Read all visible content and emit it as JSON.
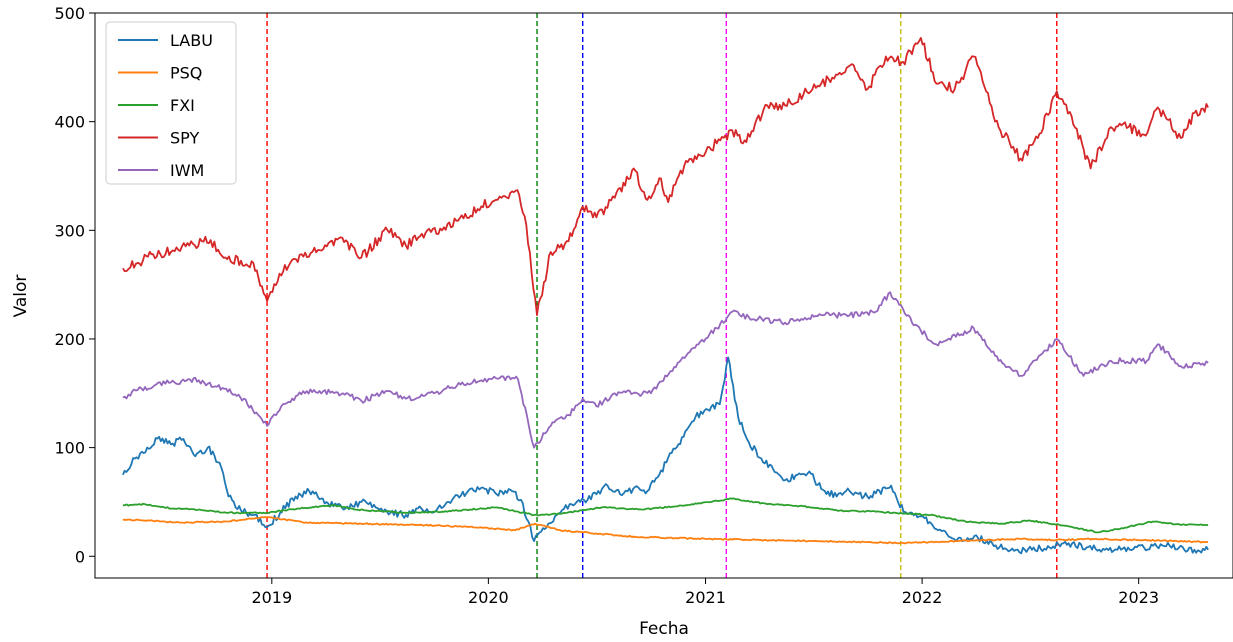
{
  "chart_data": {
    "type": "line",
    "xlabel": "Fecha",
    "ylabel": "Valor",
    "x_range": [
      "2018-03-09",
      "2023-06-09"
    ],
    "ylim": [
      -20,
      500
    ],
    "x_ticks": [
      "2019-01-01",
      "2020-01-01",
      "2021-01-01",
      "2022-01-01",
      "2023-01-01"
    ],
    "x_tick_labels": [
      "2019",
      "2020",
      "2021",
      "2022",
      "2023"
    ],
    "y_ticks": [
      0,
      100,
      200,
      300,
      400,
      500
    ],
    "y_tick_labels": [
      "0",
      "100",
      "200",
      "300",
      "400",
      "500"
    ],
    "grid": false,
    "legend_position": "upper-left",
    "series": [
      {
        "name": "LABU",
        "color": "#1f77b4",
        "points": [
          [
            "2018-04-25",
            75
          ],
          [
            "2018-05-15",
            90
          ],
          [
            "2018-06-05",
            100
          ],
          [
            "2018-06-25",
            110
          ],
          [
            "2018-07-15",
            103
          ],
          [
            "2018-08-05",
            108
          ],
          [
            "2018-08-25",
            92
          ],
          [
            "2018-09-15",
            100
          ],
          [
            "2018-10-05",
            86
          ],
          [
            "2018-10-20",
            55
          ],
          [
            "2018-11-10",
            42
          ],
          [
            "2018-12-01",
            38
          ],
          [
            "2018-12-24",
            27
          ],
          [
            "2019-01-15",
            40
          ],
          [
            "2019-02-10",
            55
          ],
          [
            "2019-03-05",
            60
          ],
          [
            "2019-03-25",
            53
          ],
          [
            "2019-04-15",
            46
          ],
          [
            "2019-05-05",
            44
          ],
          [
            "2019-06-01",
            50
          ],
          [
            "2019-06-25",
            45
          ],
          [
            "2019-07-20",
            40
          ],
          [
            "2019-08-15",
            38
          ],
          [
            "2019-09-10",
            44
          ],
          [
            "2019-10-05",
            42
          ],
          [
            "2019-11-01",
            52
          ],
          [
            "2019-11-25",
            58
          ],
          [
            "2019-12-20",
            63
          ],
          [
            "2020-01-15",
            57
          ],
          [
            "2020-02-10",
            60
          ],
          [
            "2020-02-25",
            52
          ],
          [
            "2020-03-18",
            14
          ],
          [
            "2020-04-05",
            25
          ],
          [
            "2020-05-01",
            40
          ],
          [
            "2020-05-20",
            48
          ],
          [
            "2020-06-10",
            52
          ],
          [
            "2020-07-01",
            57
          ],
          [
            "2020-07-20",
            65
          ],
          [
            "2020-08-10",
            57
          ],
          [
            "2020-09-01",
            62
          ],
          [
            "2020-09-25",
            60
          ],
          [
            "2020-10-15",
            75
          ],
          [
            "2020-11-05",
            95
          ],
          [
            "2020-11-25",
            110
          ],
          [
            "2020-12-15",
            128
          ],
          [
            "2021-01-05",
            135
          ],
          [
            "2021-01-25",
            140
          ],
          [
            "2021-02-08",
            183
          ],
          [
            "2021-02-25",
            128
          ],
          [
            "2021-03-15",
            105
          ],
          [
            "2021-04-05",
            90
          ],
          [
            "2021-04-25",
            80
          ],
          [
            "2021-05-15",
            70
          ],
          [
            "2021-06-05",
            75
          ],
          [
            "2021-06-25",
            78
          ],
          [
            "2021-07-15",
            62
          ],
          [
            "2021-08-10",
            55
          ],
          [
            "2021-09-01",
            60
          ],
          [
            "2021-09-25",
            55
          ],
          [
            "2021-10-15",
            58
          ],
          [
            "2021-11-10",
            65
          ],
          [
            "2021-11-25",
            45
          ],
          [
            "2021-12-15",
            40
          ],
          [
            "2022-01-05",
            35
          ],
          [
            "2022-01-25",
            25
          ],
          [
            "2022-02-15",
            18
          ],
          [
            "2022-03-10",
            14
          ],
          [
            "2022-04-05",
            17
          ],
          [
            "2022-05-05",
            10
          ],
          [
            "2022-06-05",
            5
          ],
          [
            "2022-07-05",
            6
          ],
          [
            "2022-08-10",
            9
          ],
          [
            "2022-09-05",
            12
          ],
          [
            "2022-10-05",
            8
          ],
          [
            "2022-11-05",
            6
          ],
          [
            "2022-12-05",
            7
          ],
          [
            "2023-01-10",
            8
          ],
          [
            "2023-02-10",
            10
          ],
          [
            "2023-03-10",
            8
          ],
          [
            "2023-04-05",
            6
          ],
          [
            "2023-04-28",
            6
          ]
        ]
      },
      {
        "name": "PSQ",
        "color": "#ff7f0e",
        "points": [
          [
            "2018-04-25",
            34
          ],
          [
            "2018-08-01",
            31
          ],
          [
            "2018-10-15",
            32
          ],
          [
            "2018-12-24",
            36
          ],
          [
            "2019-03-01",
            31
          ],
          [
            "2019-06-01",
            30
          ],
          [
            "2019-09-01",
            29
          ],
          [
            "2019-12-01",
            27
          ],
          [
            "2020-02-15",
            24
          ],
          [
            "2020-03-20",
            30
          ],
          [
            "2020-05-01",
            24
          ],
          [
            "2020-07-01",
            21
          ],
          [
            "2020-09-01",
            18
          ],
          [
            "2020-11-01",
            17
          ],
          [
            "2021-01-01",
            16
          ],
          [
            "2021-04-01",
            15
          ],
          [
            "2021-07-01",
            14
          ],
          [
            "2021-10-01",
            13
          ],
          [
            "2021-12-01",
            12
          ],
          [
            "2022-03-01",
            14
          ],
          [
            "2022-06-15",
            16
          ],
          [
            "2022-08-15",
            15
          ],
          [
            "2022-10-15",
            16
          ],
          [
            "2023-01-01",
            15
          ],
          [
            "2023-03-01",
            14
          ],
          [
            "2023-04-28",
            13
          ]
        ]
      },
      {
        "name": "FXI",
        "color": "#2ca02c",
        "points": [
          [
            "2018-04-25",
            47
          ],
          [
            "2018-06-01",
            48
          ],
          [
            "2018-07-15",
            44
          ],
          [
            "2018-09-01",
            43
          ],
          [
            "2018-10-20",
            40
          ],
          [
            "2018-12-24",
            40
          ],
          [
            "2019-02-15",
            44
          ],
          [
            "2019-04-15",
            47
          ],
          [
            "2019-05-20",
            43
          ],
          [
            "2019-08-15",
            40
          ],
          [
            "2019-10-15",
            41
          ],
          [
            "2020-01-15",
            45
          ],
          [
            "2020-03-18",
            38
          ],
          [
            "2020-05-01",
            39
          ],
          [
            "2020-07-10",
            45
          ],
          [
            "2020-09-15",
            43
          ],
          [
            "2020-11-15",
            46
          ],
          [
            "2021-02-15",
            53
          ],
          [
            "2021-04-15",
            48
          ],
          [
            "2021-06-15",
            46
          ],
          [
            "2021-08-15",
            42
          ],
          [
            "2021-10-15",
            41
          ],
          [
            "2022-01-15",
            38
          ],
          [
            "2022-03-15",
            32
          ],
          [
            "2022-05-15",
            30
          ],
          [
            "2022-07-01",
            33
          ],
          [
            "2022-09-01",
            28
          ],
          [
            "2022-10-25",
            22
          ],
          [
            "2022-12-15",
            27
          ],
          [
            "2023-01-25",
            32
          ],
          [
            "2023-03-15",
            29
          ],
          [
            "2023-04-28",
            29
          ]
        ]
      },
      {
        "name": "SPY",
        "color": "#d62728",
        "points": [
          [
            "2018-04-25",
            265
          ],
          [
            "2018-05-20",
            270
          ],
          [
            "2018-06-15",
            278
          ],
          [
            "2018-07-15",
            280
          ],
          [
            "2018-08-15",
            286
          ],
          [
            "2018-09-20",
            291
          ],
          [
            "2018-10-15",
            275
          ],
          [
            "2018-11-10",
            272
          ],
          [
            "2018-12-01",
            270
          ],
          [
            "2018-12-24",
            235
          ],
          [
            "2019-01-20",
            262
          ],
          [
            "2019-02-20",
            278
          ],
          [
            "2019-03-20",
            282
          ],
          [
            "2019-04-30",
            293
          ],
          [
            "2019-06-01",
            275
          ],
          [
            "2019-07-15",
            300
          ],
          [
            "2019-08-15",
            286
          ],
          [
            "2019-09-20",
            300
          ],
          [
            "2019-10-15",
            300
          ],
          [
            "2019-11-20",
            311
          ],
          [
            "2019-12-20",
            322
          ],
          [
            "2020-01-20",
            331
          ],
          [
            "2020-02-19",
            337
          ],
          [
            "2020-03-05",
            305
          ],
          [
            "2020-03-23",
            222
          ],
          [
            "2020-04-15",
            280
          ],
          [
            "2020-05-15",
            290
          ],
          [
            "2020-06-08",
            322
          ],
          [
            "2020-07-01",
            312
          ],
          [
            "2020-08-01",
            330
          ],
          [
            "2020-09-02",
            357
          ],
          [
            "2020-09-25",
            328
          ],
          [
            "2020-10-15",
            348
          ],
          [
            "2020-10-30",
            326
          ],
          [
            "2020-11-20",
            355
          ],
          [
            "2020-12-20",
            370
          ],
          [
            "2021-01-20",
            380
          ],
          [
            "2021-02-15",
            392
          ],
          [
            "2021-03-05",
            380
          ],
          [
            "2021-04-15",
            415
          ],
          [
            "2021-05-15",
            415
          ],
          [
            "2021-06-15",
            425
          ],
          [
            "2021-07-15",
            435
          ],
          [
            "2021-08-15",
            445
          ],
          [
            "2021-09-02",
            452
          ],
          [
            "2021-10-01",
            430
          ],
          [
            "2021-11-01",
            460
          ],
          [
            "2021-11-30",
            455
          ],
          [
            "2021-12-30",
            477
          ],
          [
            "2022-01-25",
            435
          ],
          [
            "2022-02-25",
            430
          ],
          [
            "2022-03-29",
            460
          ],
          [
            "2022-05-10",
            395
          ],
          [
            "2022-06-16",
            366
          ],
          [
            "2022-07-15",
            385
          ],
          [
            "2022-08-16",
            428
          ],
          [
            "2022-09-10",
            405
          ],
          [
            "2022-10-12",
            357
          ],
          [
            "2022-11-15",
            395
          ],
          [
            "2022-12-15",
            395
          ],
          [
            "2023-01-10",
            388
          ],
          [
            "2023-02-02",
            413
          ],
          [
            "2023-03-13",
            385
          ],
          [
            "2023-04-05",
            408
          ],
          [
            "2023-04-28",
            413
          ]
        ]
      },
      {
        "name": "IWM",
        "color": "#9467bd",
        "points": [
          [
            "2018-04-25",
            146
          ],
          [
            "2018-05-20",
            153
          ],
          [
            "2018-06-20",
            158
          ],
          [
            "2018-07-15",
            160
          ],
          [
            "2018-08-31",
            162
          ],
          [
            "2018-10-10",
            155
          ],
          [
            "2018-11-15",
            145
          ],
          [
            "2018-12-24",
            120
          ],
          [
            "2019-01-20",
            140
          ],
          [
            "2019-03-01",
            152
          ],
          [
            "2019-05-01",
            150
          ],
          [
            "2019-06-01",
            143
          ],
          [
            "2019-07-15",
            152
          ],
          [
            "2019-08-15",
            145
          ],
          [
            "2019-10-01",
            150
          ],
          [
            "2019-11-15",
            158
          ],
          [
            "2019-12-20",
            162
          ],
          [
            "2020-01-20",
            164
          ],
          [
            "2020-02-20",
            163
          ],
          [
            "2020-03-18",
            100
          ],
          [
            "2020-04-15",
            120
          ],
          [
            "2020-05-15",
            130
          ],
          [
            "2020-06-08",
            145
          ],
          [
            "2020-07-01",
            138
          ],
          [
            "2020-08-01",
            150
          ],
          [
            "2020-09-01",
            150
          ],
          [
            "2020-10-01",
            150
          ],
          [
            "2020-11-15",
            178
          ],
          [
            "2020-12-20",
            195
          ],
          [
            "2021-01-20",
            210
          ],
          [
            "2021-02-15",
            225
          ],
          [
            "2021-03-15",
            220
          ],
          [
            "2021-05-15",
            215
          ],
          [
            "2021-07-15",
            222
          ],
          [
            "2021-09-01",
            222
          ],
          [
            "2021-10-15",
            225
          ],
          [
            "2021-11-08",
            243
          ],
          [
            "2021-12-15",
            215
          ],
          [
            "2022-01-25",
            195
          ],
          [
            "2022-03-29",
            210
          ],
          [
            "2022-05-10",
            180
          ],
          [
            "2022-06-16",
            166
          ],
          [
            "2022-08-16",
            200
          ],
          [
            "2022-09-30",
            166
          ],
          [
            "2022-11-15",
            180
          ],
          [
            "2023-01-15",
            180
          ],
          [
            "2023-02-02",
            195
          ],
          [
            "2023-03-13",
            175
          ],
          [
            "2023-04-28",
            178
          ]
        ]
      }
    ],
    "vertical_lines": [
      {
        "date": "2018-12-24",
        "color": "#ff0000"
      },
      {
        "date": "2020-03-23",
        "color": "#008000"
      },
      {
        "date": "2020-06-08",
        "color": "#0000ff"
      },
      {
        "date": "2021-02-05",
        "color": "#ff00ff"
      },
      {
        "date": "2021-11-26",
        "color": "#bfbf00"
      },
      {
        "date": "2022-08-16",
        "color": "#ff0000"
      }
    ]
  }
}
